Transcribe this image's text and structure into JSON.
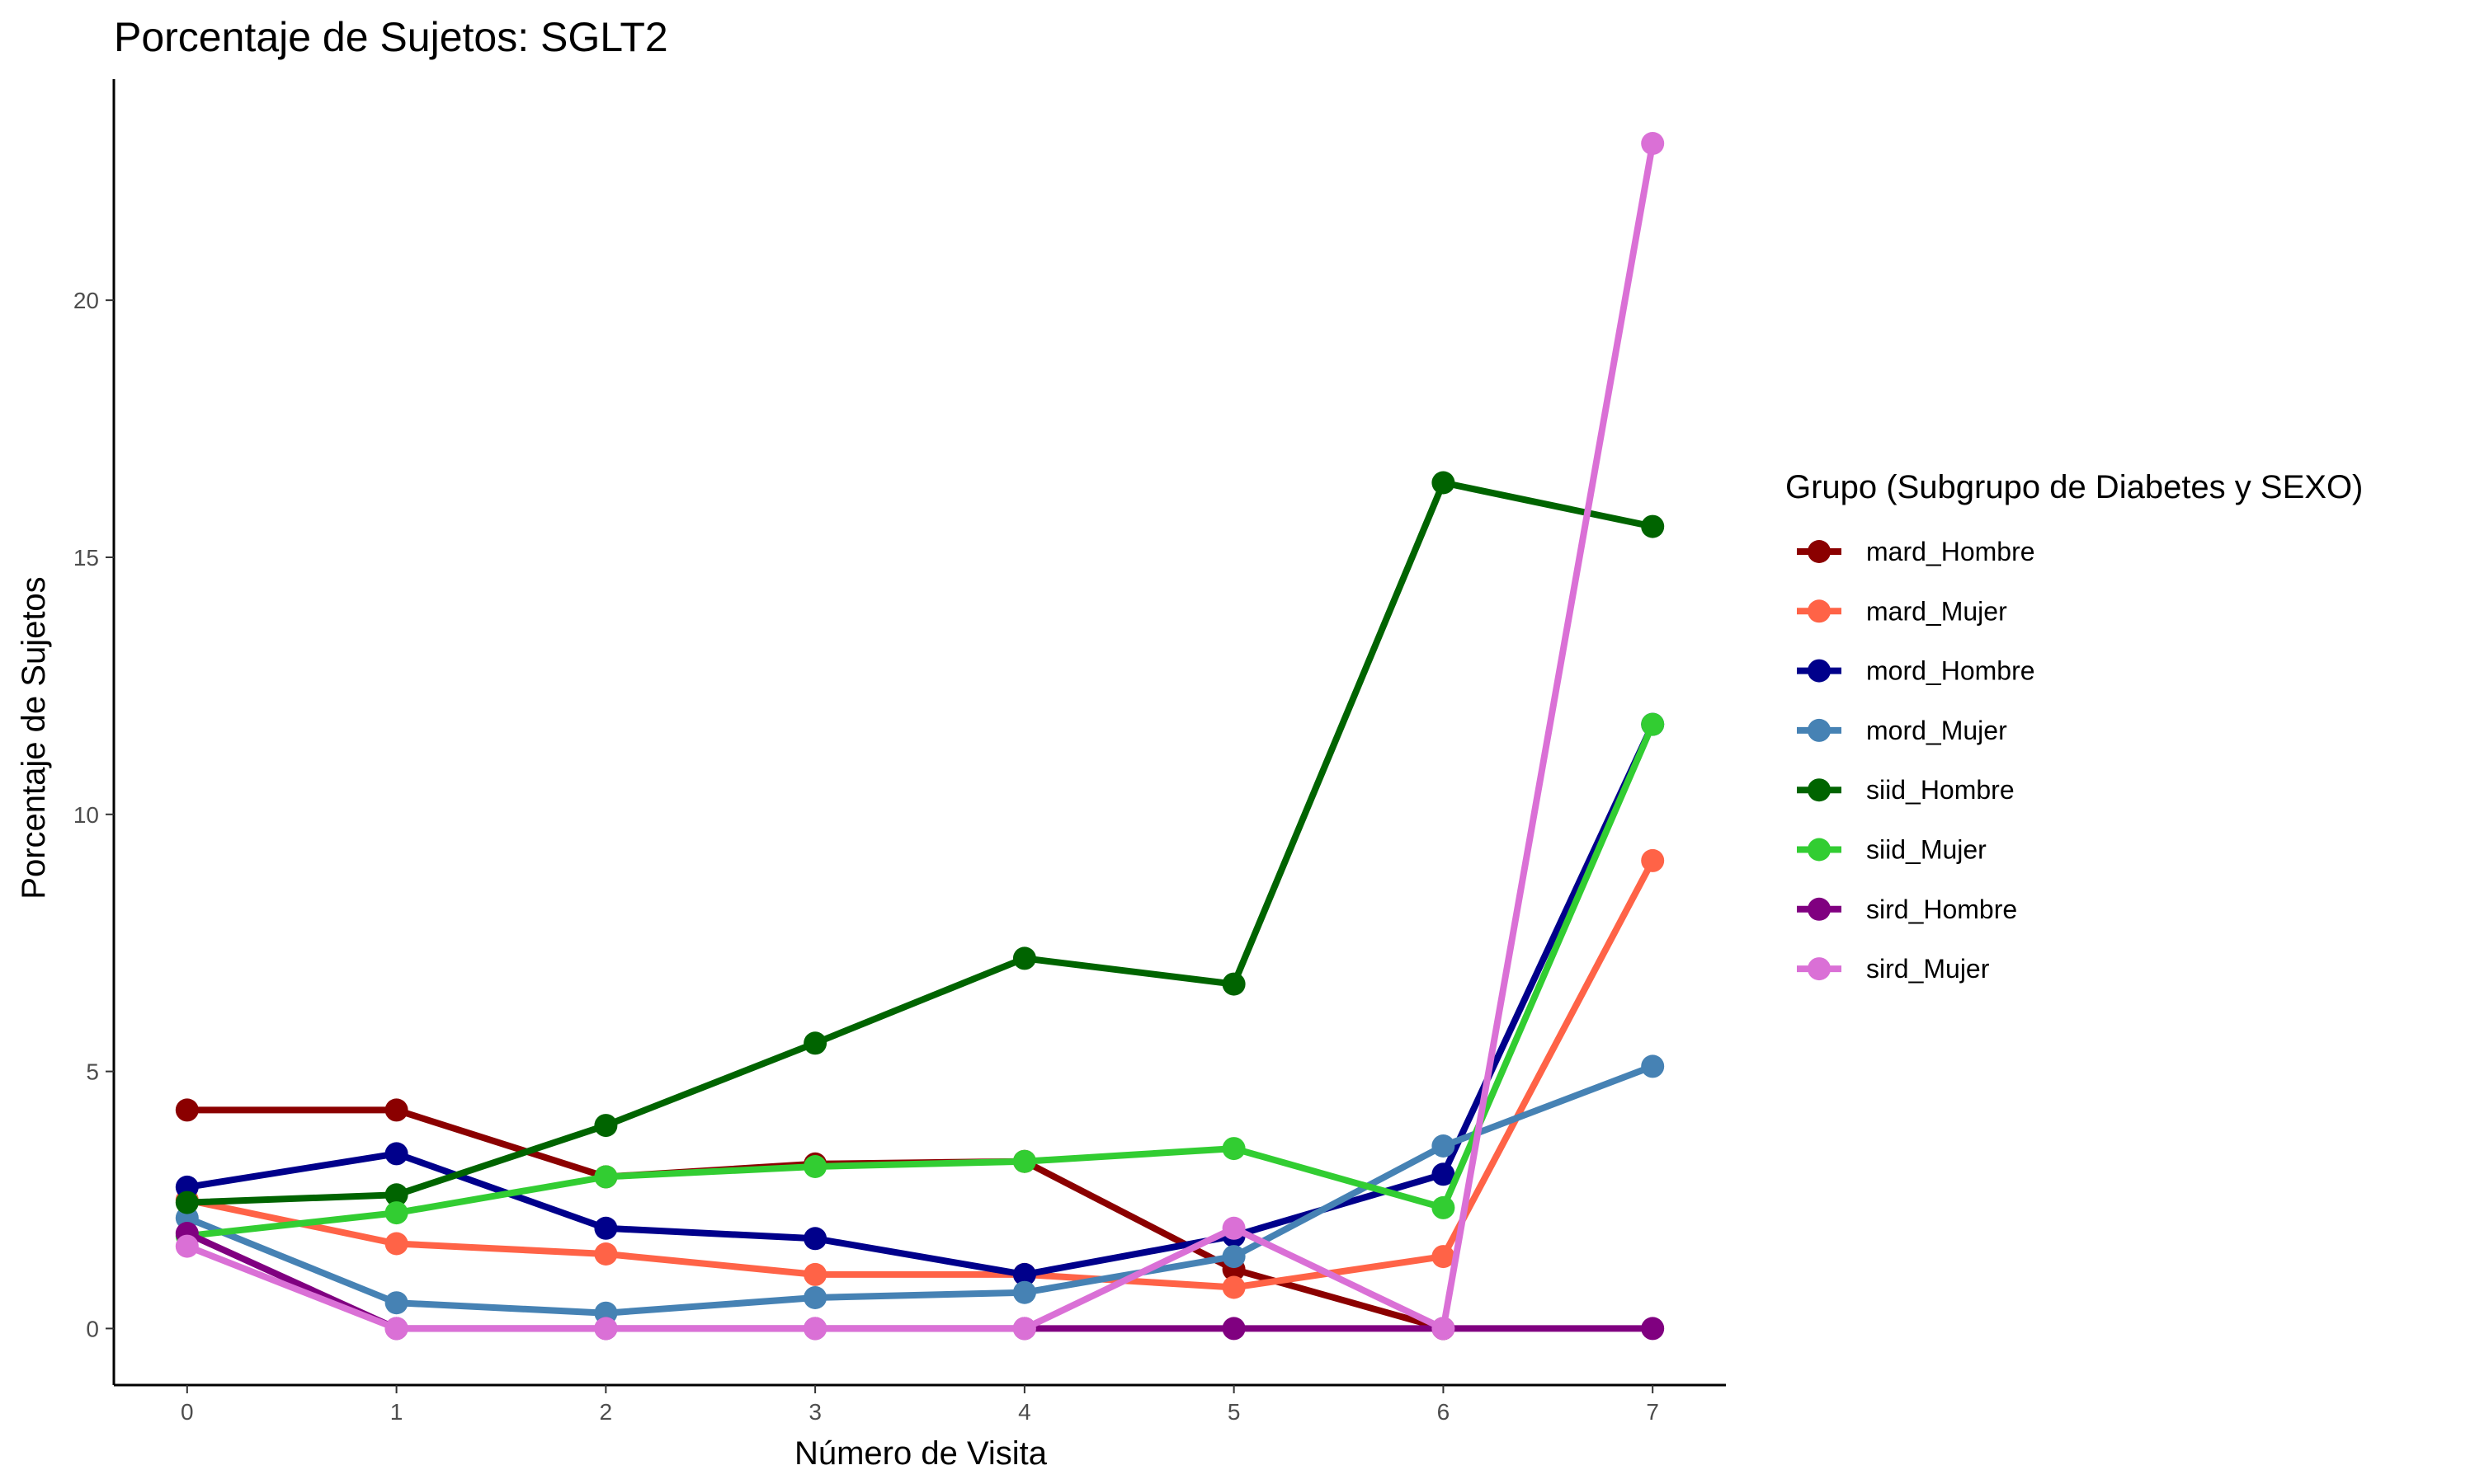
{
  "chart_data": {
    "type": "line",
    "title": "Porcentaje de Sujetos: SGLT2",
    "xlabel": "Número de Visita",
    "ylabel": "Porcentaje de Sujetos",
    "x": [
      0,
      1,
      2,
      3,
      4,
      5,
      6,
      7
    ],
    "xticks": [
      "0",
      "1",
      "2",
      "3",
      "4",
      "5",
      "6",
      "7"
    ],
    "xlim": [
      -0.35,
      7.35
    ],
    "ylim": [
      -1.1,
      24.3
    ],
    "yticks": [
      0,
      5,
      10,
      15,
      20
    ],
    "grid": false,
    "legend": {
      "title": "Grupo (Subgrupo de Diabetes y SEXO)",
      "position": "right"
    },
    "series": [
      {
        "name": "mard_Hombre",
        "color": "#8B0000",
        "values": [
          4.25,
          4.25,
          2.95,
          3.2,
          3.25,
          1.15,
          0.0,
          null
        ]
      },
      {
        "name": "mard_Mujer",
        "color": "#FF6347",
        "values": [
          2.5,
          1.65,
          1.45,
          1.05,
          1.05,
          0.8,
          1.4,
          9.1
        ]
      },
      {
        "name": "mord_Hombre",
        "color": "#00008B",
        "values": [
          2.75,
          3.4,
          1.95,
          1.75,
          1.05,
          1.8,
          3.0,
          11.75
        ]
      },
      {
        "name": "mord_Mujer",
        "color": "#4682B4",
        "values": [
          2.15,
          0.5,
          0.3,
          0.6,
          0.7,
          1.4,
          3.55,
          5.1
        ]
      },
      {
        "name": "siid_Hombre",
        "color": "#006400",
        "values": [
          2.45,
          2.6,
          3.95,
          5.55,
          7.2,
          6.7,
          16.45,
          15.6
        ]
      },
      {
        "name": "siid_Mujer",
        "color": "#32CD32",
        "values": [
          1.8,
          2.25,
          2.95,
          3.15,
          3.25,
          3.5,
          2.35,
          11.75
        ]
      },
      {
        "name": "sird_Hombre",
        "color": "#800080",
        "values": [
          1.85,
          0.0,
          0.0,
          0.0,
          0.0,
          0.0,
          0.0,
          0.0
        ]
      },
      {
        "name": "sird_Mujer",
        "color": "#DA70D6",
        "values": [
          1.6,
          0.0,
          0.0,
          0.0,
          0.0,
          1.95,
          0.0,
          23.05
        ]
      }
    ]
  }
}
